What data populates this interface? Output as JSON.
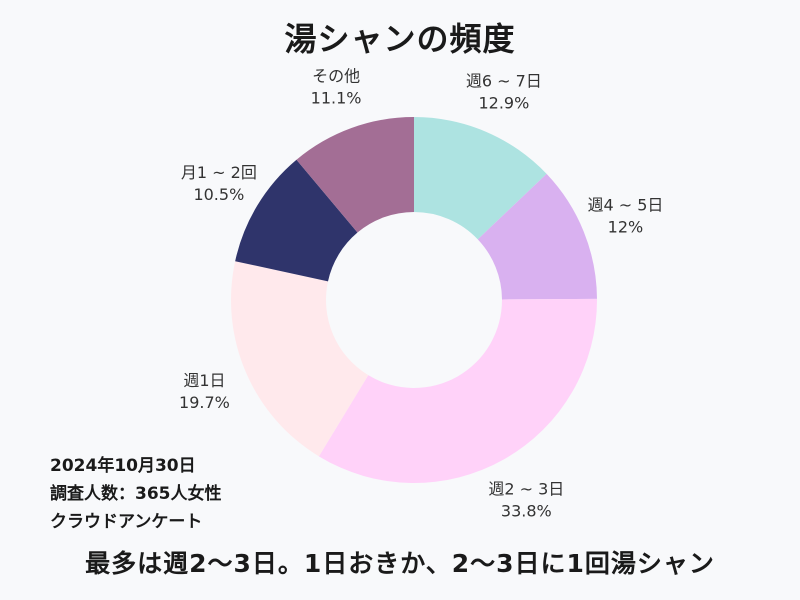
{
  "title": "湯シャンの頻度",
  "chart_data": {
    "type": "pie",
    "title": "湯シャンの頻度",
    "categories": [
      "週6～7日",
      "週4～5日",
      "週2～3日",
      "週1日",
      "月1～2回",
      "その他"
    ],
    "values": [
      12.9,
      12.0,
      33.8,
      19.7,
      10.5,
      11.1
    ],
    "value_labels": [
      "12.9%",
      "12%",
      "33.8%",
      "19.7%",
      "10.5%",
      "11.1%"
    ],
    "label_names": [
      "週6 ~ 7日",
      "週4 ~ 5日",
      "週2 ~ 3日",
      "週1日",
      "月1 ~ 2回",
      "その他"
    ],
    "colors": [
      "#ade3e1",
      "#d9b1f0",
      "#ffd2f9",
      "#ffe9ec",
      "#2f346b",
      "#a36e95"
    ],
    "donut": true,
    "start": "top",
    "direction": "clockwise"
  },
  "info": {
    "date": "2024年10月30日",
    "respondents": "調査人数：365人女性",
    "method": "クラウドアンケート"
  },
  "footer": "最多は週2～3日。1日おきか、2～3日に1回湯シャン"
}
